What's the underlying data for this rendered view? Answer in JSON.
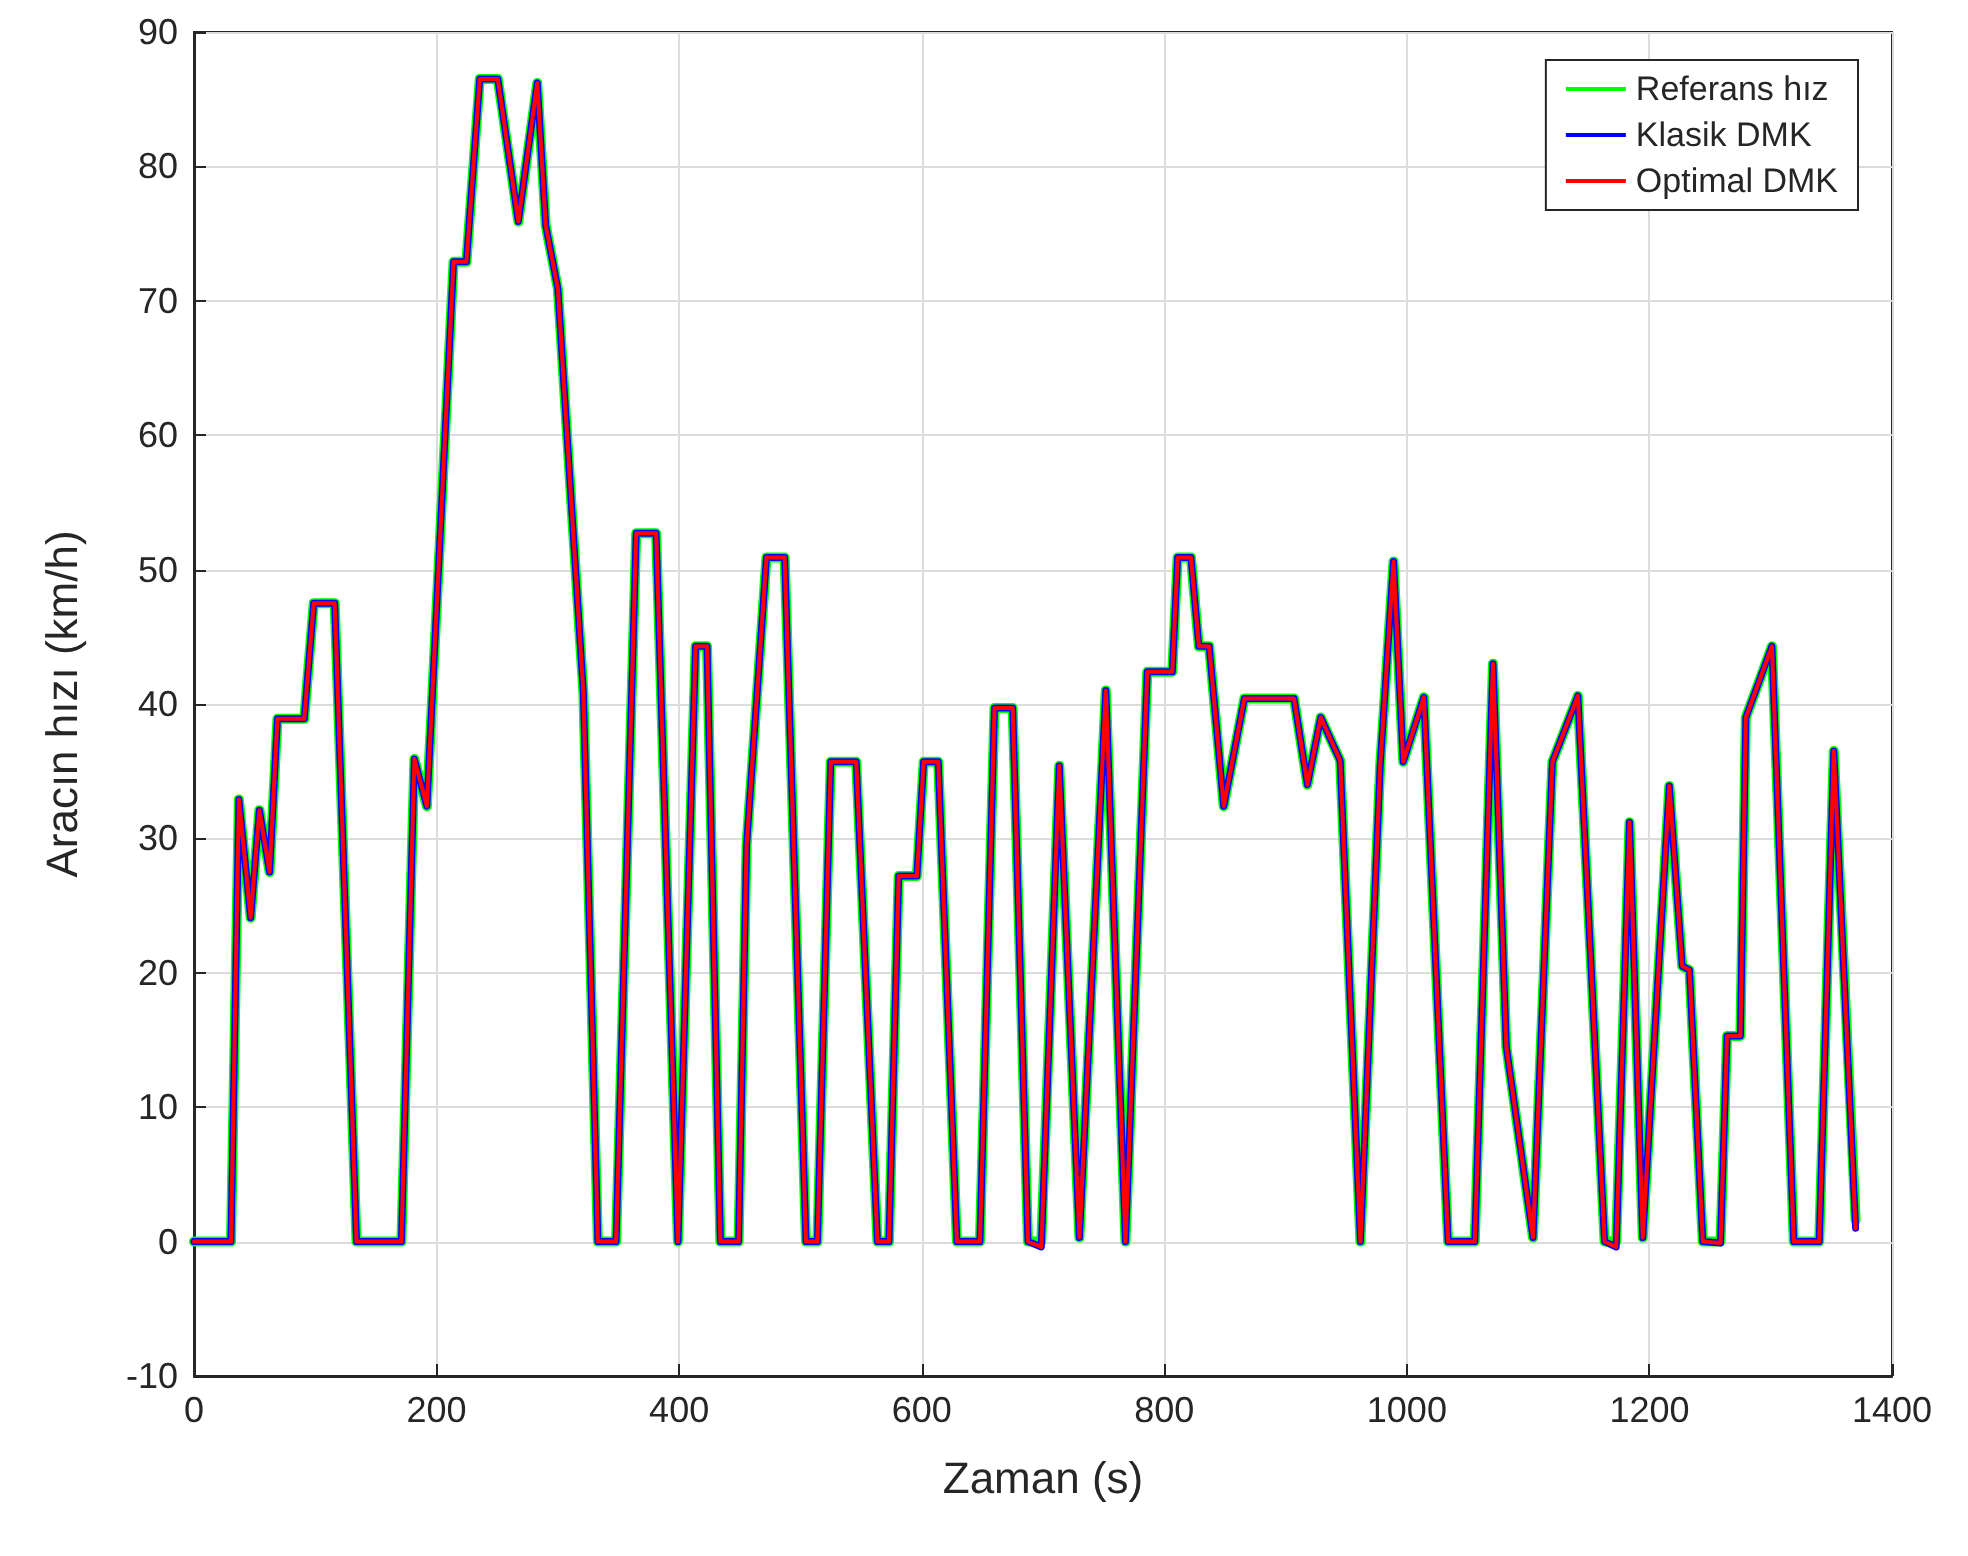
{
  "chart_data": {
    "type": "line",
    "xlabel": "Zaman (s)",
    "ylabel": "Aracın hızı (km/h)",
    "x": [
      0,
      30.5,
      37,
      46.7,
      53.9,
      62.3,
      68.8,
      90.9,
      98.7,
      116,
      134,
      171,
      181.7,
      192,
      214,
      224.6,
      235.6,
      250.5,
      267.4,
      283,
      290,
      300,
      311.5,
      321,
      333,
      348,
      364.6,
      381,
      399,
      413.6,
      423,
      434,
      449,
      455.6,
      472,
      487,
      504.6,
      514,
      525,
      546,
      563.5,
      573,
      581,
      596,
      601.6,
      613.6,
      629,
      648,
      660,
      675,
      687.6,
      698.6,
      713.4,
      730,
      751.8,
      768,
      786,
      806.6,
      811,
      822,
      828.5,
      837,
      849,
      866,
      907,
      918,
      929,
      945,
      961.7,
      978,
      989,
      997,
      1014,
      1034,
      1056,
      1071,
      1082,
      1104,
      1120,
      1141,
      1163,
      1172.6,
      1183.6,
      1194.5,
      1216.4,
      1227,
      1233,
      1244,
      1258.6,
      1264,
      1275,
      1279.5,
      1301,
      1319,
      1340,
      1352,
      1370
    ],
    "series": [
      {
        "name": "Referans hız",
        "color": "#00ff00",
        "values": [
          0,
          0,
          32.9,
          24.1,
          32.1,
          27.5,
          38.9,
          38.9,
          47.5,
          47.5,
          0,
          0,
          35.9,
          32.4,
          72.9,
          72.9,
          86.5,
          86.5,
          75.9,
          86.2,
          75.6,
          70.9,
          54.4,
          40.9,
          0,
          0,
          52.7,
          52.7,
          0,
          44.3,
          44.3,
          0,
          0,
          29.5,
          50.9,
          50.9,
          0,
          0,
          35.7,
          35.7,
          0,
          0,
          27.2,
          27.2,
          35.7,
          35.7,
          0,
          0,
          39.7,
          39.7,
          0,
          0,
          35.4,
          0.3,
          41,
          0,
          42.4,
          42.4,
          50.9,
          50.9,
          44.3,
          44.3,
          32.4,
          40.4,
          40.4,
          34,
          39,
          35.8,
          0,
          35.4,
          50.6,
          35.7,
          40.5,
          0,
          0,
          43,
          14.5,
          0.3,
          35.7,
          40.6,
          0,
          0,
          31.2,
          0.3,
          33.9,
          20.5,
          20.2,
          0,
          0,
          15.3,
          15.3,
          39,
          44.3,
          0,
          0,
          36.5,
          1.6
        ]
      },
      {
        "name": "Klasik DMK",
        "color": "#0000ff",
        "values": [
          0,
          0,
          32.9,
          24.1,
          32.1,
          27.5,
          38.9,
          38.9,
          47.5,
          47.5,
          0,
          0,
          35.9,
          32.4,
          72.9,
          72.9,
          86.5,
          86.5,
          75.9,
          86.2,
          75.6,
          70.9,
          54.4,
          40.9,
          0,
          0,
          52.7,
          52.7,
          0,
          44.3,
          44.3,
          0,
          0,
          29.5,
          50.9,
          50.9,
          0,
          0,
          35.7,
          35.7,
          0,
          0,
          27.2,
          27.2,
          35.7,
          35.7,
          0,
          0,
          39.7,
          39.7,
          0,
          -0.4,
          35.4,
          0.3,
          41,
          0,
          42.4,
          42.4,
          50.9,
          50.9,
          44.3,
          44.3,
          32.4,
          40.4,
          40.4,
          34,
          39,
          35.8,
          0,
          35.4,
          50.6,
          35.7,
          40.5,
          0,
          0,
          43,
          14.5,
          0.3,
          35.7,
          40.6,
          0,
          -0.4,
          31.2,
          0.3,
          33.9,
          20.5,
          20.2,
          0,
          -0.1,
          15.3,
          15.3,
          39,
          44.3,
          0,
          0,
          36.5,
          1
        ]
      },
      {
        "name": "Optimal DMK",
        "color": "#ff0000",
        "values": [
          0,
          0,
          32.9,
          24.1,
          32.1,
          27.5,
          38.9,
          38.9,
          47.5,
          47.5,
          0,
          0,
          35.9,
          32.4,
          72.9,
          72.9,
          86.5,
          86.5,
          75.9,
          86.2,
          75.6,
          70.9,
          54.4,
          40.9,
          0,
          0,
          52.7,
          52.7,
          0,
          44.3,
          44.3,
          0,
          0,
          29.5,
          50.9,
          50.9,
          0,
          0,
          35.7,
          35.7,
          0,
          0,
          27.2,
          27.2,
          35.7,
          35.7,
          0,
          0,
          39.7,
          39.7,
          0,
          -0.4,
          35.4,
          0.3,
          41,
          0,
          42.4,
          42.4,
          50.9,
          50.9,
          44.3,
          44.3,
          32.4,
          40.4,
          40.4,
          34,
          39,
          35.8,
          0,
          35.4,
          50.6,
          35.7,
          40.5,
          0,
          0,
          43,
          14.5,
          0.3,
          35.7,
          40.6,
          0,
          -0.4,
          31.2,
          0.3,
          33.9,
          20.5,
          20.2,
          0,
          -0.1,
          15.3,
          15.3,
          39,
          44.3,
          0,
          0,
          36.5,
          1
        ]
      }
    ],
    "xlim": [
      0,
      1400
    ],
    "xticks": [
      0,
      200,
      400,
      600,
      800,
      {
        "value": 1000,
        "label": "1000"
      },
      {
        "value": 1200,
        "label": "1200"
      },
      {
        "value": 1400,
        "label": "1400"
      }
    ],
    "ylim": [
      -10,
      90
    ],
    "yticks": [
      -10,
      0,
      10,
      20,
      30,
      40,
      50,
      60,
      70,
      80,
      90
    ],
    "grid": true,
    "legend": "top right",
    "marker": "none",
    "line_style": "solid"
  }
}
